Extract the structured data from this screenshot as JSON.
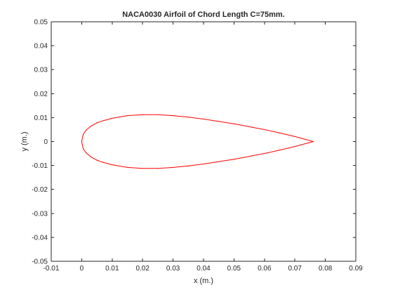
{
  "chart_data": {
    "type": "line",
    "title": "NACA0030 Airfoil of Chord Length C=75mm.",
    "xlabel": "x (m.)",
    "ylabel": "y (m.)",
    "xlim": [
      -0.01,
      0.09
    ],
    "ylim": [
      -0.05,
      0.05
    ],
    "xticks": [
      -0.01,
      0,
      0.01,
      0.02,
      0.03,
      0.04,
      0.05,
      0.06,
      0.07,
      0.08,
      0.09
    ],
    "xtick_labels": [
      "-0.01",
      "0",
      "0.01",
      "0.02",
      "0.03",
      "0.04",
      "0.05",
      "0.06",
      "0.07",
      "0.08",
      "0.09"
    ],
    "yticks": [
      -0.05,
      -0.04,
      -0.03,
      -0.02,
      -0.01,
      0,
      0.01,
      0.02,
      0.03,
      0.04,
      0.05
    ],
    "ytick_labels": [
      "-0.05",
      "-0.04",
      "-0.03",
      "-0.02",
      "-0.01",
      "0",
      "0.01",
      "0.02",
      "0.03",
      "0.04",
      "0.05"
    ],
    "grid": false,
    "series": [
      {
        "color": "#ff0000",
        "x": [
          0.076,
          0.07,
          0.065,
          0.06,
          0.055,
          0.05,
          0.045,
          0.04,
          0.035,
          0.03,
          0.025,
          0.02,
          0.015,
          0.01,
          0.007,
          0.005,
          0.003,
          0.0015,
          0.0005,
          0,
          0.0005,
          0.0015,
          0.003,
          0.005,
          0.007,
          0.01,
          0.015,
          0.02,
          0.025,
          0.03,
          0.035,
          0.04,
          0.045,
          0.05,
          0.055,
          0.06,
          0.065,
          0.07,
          0.076
        ],
        "y": [
          0,
          0.0021,
          0.0036,
          0.005,
          0.0062,
          0.0074,
          0.0084,
          0.0094,
          0.0102,
          0.0108,
          0.0112,
          0.0112,
          0.0108,
          0.0097,
          0.0087,
          0.0078,
          0.0064,
          0.0048,
          0.003,
          0,
          -0.003,
          -0.0048,
          -0.0064,
          -0.0078,
          -0.0087,
          -0.0097,
          -0.0108,
          -0.0112,
          -0.0112,
          -0.0108,
          -0.0102,
          -0.0094,
          -0.0084,
          -0.0074,
          -0.0062,
          -0.005,
          -0.0036,
          -0.0021,
          0
        ]
      }
    ]
  }
}
